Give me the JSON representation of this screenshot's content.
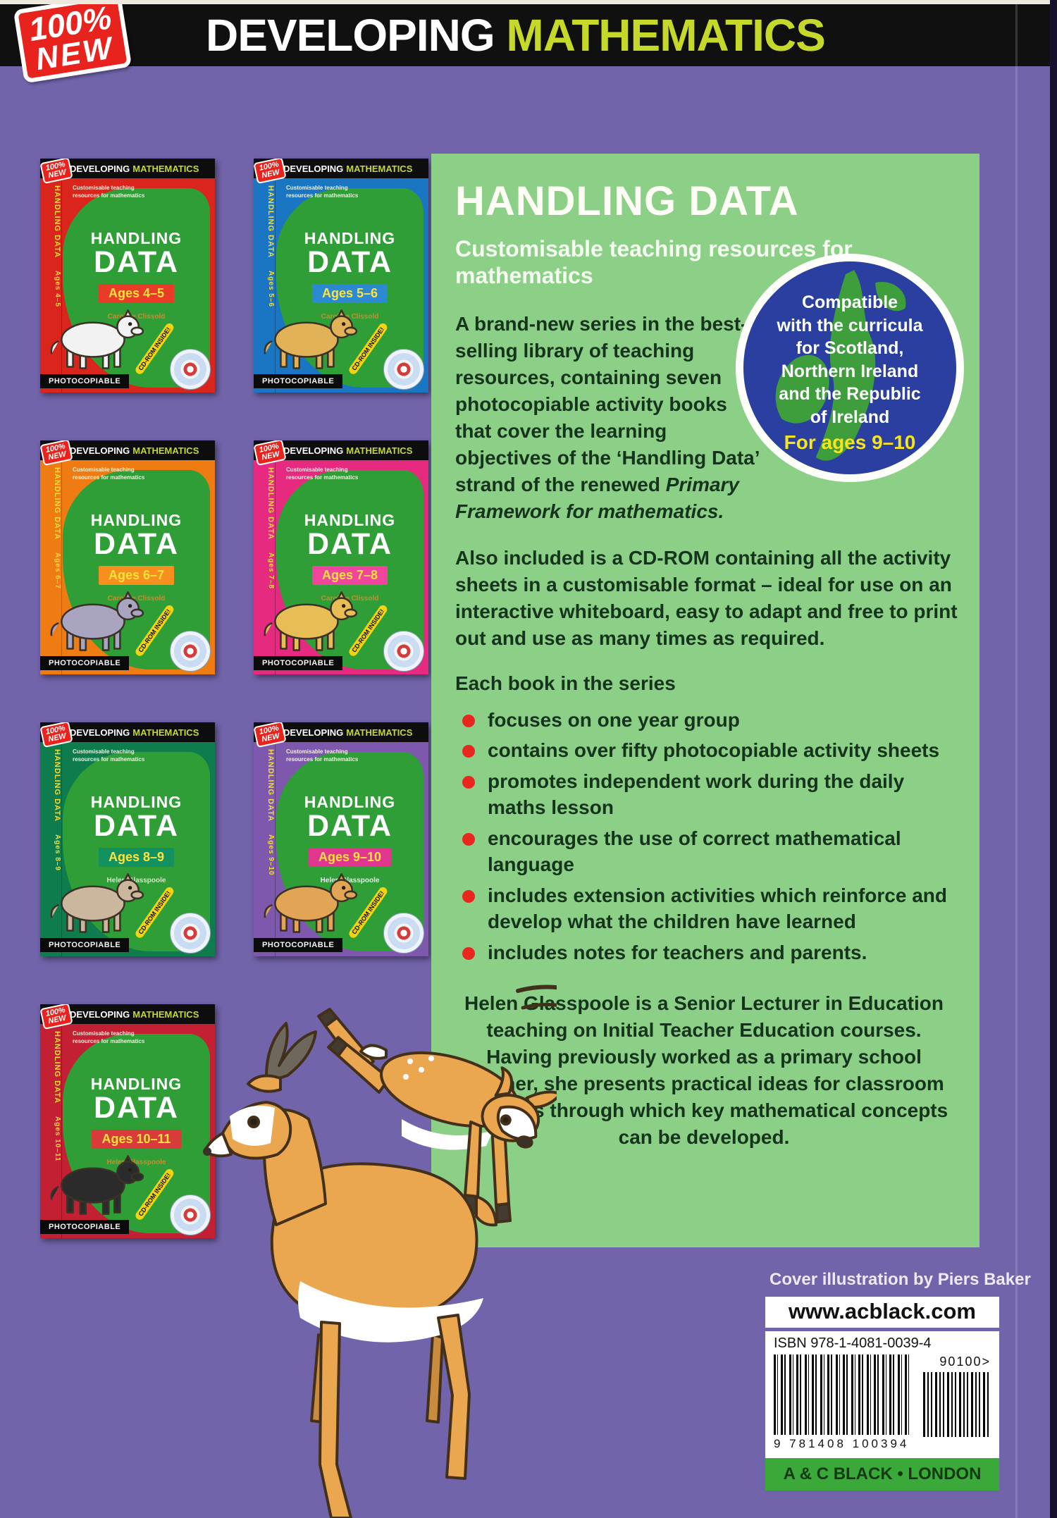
{
  "banner": {
    "title1": "DEVELOPING",
    "title2": "MATHEMATICS",
    "badge1": "100%",
    "badge2": "NEW"
  },
  "panel": {
    "heading": "HANDLING DATA",
    "subheading": "Customisable teaching resources for mathematics",
    "intro": "A brand-new series in the best-selling library of teaching resources, containing seven photocopiable activity books that cover the learning objectives of the ‘Handling Data’ strand of the renewed ",
    "intro_italic": "Primary Framework for mathematics.",
    "badge": {
      "lines": [
        "Compatible",
        "with the curricula",
        "for Scotland,",
        "Northern Ireland",
        "and the Republic",
        "of Ireland"
      ],
      "ages": "For ages 9–10"
    },
    "cdrom_paragraph": "Also included is a CD-ROM containing all the activity sheets in a customisable format – ideal for use on an interactive whiteboard, easy to adapt and free to print out and use as many times as required.",
    "series_intro": "Each book in the series",
    "bullets": [
      "focuses on one year group",
      "contains over fifty photocopiable activity sheets",
      "promotes independent work during the daily maths lesson",
      "encourages the use of correct mathematical language",
      "includes extension activities which reinforce and develop what the children have learned",
      "includes notes for teachers and parents."
    ],
    "bio": "Helen Glasspoole is a Senior Lecturer in Education teaching on Initial Teacher Education courses. Having previously worked as a primary school teacher, she presents practical ideas for classroom activities through which key mathematical concepts can be developed."
  },
  "cover_common": {
    "series1": "DEVELOPING",
    "series2": "MATHEMATICS",
    "badge1": "100%",
    "badge2": "NEW",
    "blurb": "Customisable teaching resources for mathematics",
    "spine": "HANDLING DATA",
    "title1": "HANDLING",
    "title2": "DATA",
    "cd_label": "CD-ROM INSIDE!",
    "photocopiable": "PHOTOCOPIABLE"
  },
  "covers": [
    {
      "age": "Ages 4–5",
      "author": "Caroline Clissold",
      "animal": "zebras",
      "bg": "#da251c",
      "band": "#e93c28",
      "author_color": "#d4872b",
      "animal_color": "#f2f2f2"
    },
    {
      "age": "Ages 5–6",
      "author": "Caroline Clissold",
      "animal": "giraffe",
      "bg": "#1a76c2",
      "band": "#2b8ad2",
      "author_color": "#d4872b",
      "animal_color": "#e2b258"
    },
    {
      "age": "Ages 6–7",
      "author": "Caroline Clissold",
      "animal": "elephants",
      "bg": "#ef7c12",
      "band": "#f68f1e",
      "author_color": "#d4872b",
      "animal_color": "#a9a5c0"
    },
    {
      "age": "Ages 7–8",
      "author": "Caroline Clissold",
      "animal": "lion",
      "bg": "#e62a80",
      "band": "#f0459c",
      "author_color": "#d4872b",
      "animal_color": "#e9bd56"
    },
    {
      "age": "Ages 8–9",
      "author": "Helen Glasspoole",
      "animal": "monkeys",
      "bg": "#0e7c4c",
      "band": "#139260",
      "author_color": "#d9e2cc",
      "animal_color": "#cbb79d"
    },
    {
      "age": "Ages 9–10",
      "author": "Helen Glasspoole",
      "animal": "gazelle",
      "bg": "#7d58ac",
      "band": "#e0368d",
      "author_color": "#ece8f4",
      "animal_color": "#e2a455"
    },
    {
      "age": "Ages 10–11",
      "author": "Helen Glasspoole",
      "animal": "ostriches",
      "bg": "#c32034",
      "band": "#d93a3a",
      "author_color": "#d4872b",
      "animal_color": "#2b2b2b"
    }
  ],
  "footer": {
    "credit": "Cover illustration by Piers Baker",
    "website": "www.acblack.com",
    "isbn_label": "ISBN 978-1-4081-0039-4",
    "barcode_digits": "9 781408 100394",
    "price_code": "90100>",
    "publisher": "A & C BLACK • LONDON"
  },
  "colors": {
    "page_purple": "#7164aa",
    "panel_green": "#8ccf87",
    "blob_green": "#2f9e36",
    "banner_black": "#101010",
    "banner_accent_green": "#c6d82a",
    "badge_red": "#e8231d",
    "bullet_red": "#e8281f",
    "round_badge_blue": "#2a3fa0",
    "round_badge_map_green": "#3f9e3c",
    "ages_yellow": "#f6e41c",
    "publisher_green": "#3aa93a",
    "body_text_dark": "#15341c"
  }
}
